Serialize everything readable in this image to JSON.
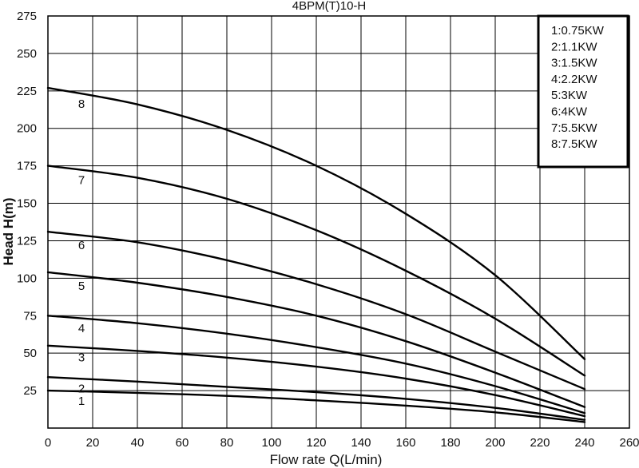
{
  "chart_data": {
    "type": "line",
    "title": "4BPM(T)10-H",
    "xlabel": "Flow rate Q(L/min)",
    "ylabel": "Head H(m)",
    "xlim": [
      0,
      260
    ],
    "ylim": [
      0,
      275
    ],
    "x_ticks": [
      "0",
      "20",
      "40",
      "60",
      "80",
      "100",
      "120",
      "140",
      "160",
      "180",
      "200",
      "220",
      "240",
      "260"
    ],
    "y_ticks": [
      "25",
      "50",
      "75",
      "100",
      "125",
      "150",
      "175",
      "200",
      "225",
      "250",
      "275"
    ],
    "grid": true,
    "legend_position": "top-right",
    "legend": [
      "1:0.75KW",
      "2:1.1KW",
      "3:1.5KW",
      "4:2.2KW",
      "5:3KW",
      "6:4KW",
      "7:5.5KW",
      "8:7.5KW"
    ],
    "x": [
      0,
      40,
      80,
      120,
      160,
      200,
      240
    ],
    "series": [
      {
        "name": "1",
        "values": [
          25,
          23.5,
          21.5,
          18.5,
          15,
          10.5,
          4
        ]
      },
      {
        "name": "2",
        "values": [
          34,
          31,
          27.5,
          24,
          19.5,
          13.5,
          5.5
        ]
      },
      {
        "name": "3",
        "values": [
          55,
          51.5,
          47,
          41,
          33,
          22,
          8
        ]
      },
      {
        "name": "4",
        "values": [
          75,
          70,
          63,
          54,
          43,
          28,
          10
        ]
      },
      {
        "name": "5",
        "values": [
          104,
          97,
          87.5,
          75,
          58,
          37,
          14
        ]
      },
      {
        "name": "6",
        "values": [
          131,
          124,
          112,
          96,
          76,
          51,
          26
        ]
      },
      {
        "name": "7",
        "values": [
          175,
          167,
          153,
          132,
          105,
          73,
          35
        ]
      },
      {
        "name": "8",
        "values": [
          227,
          216,
          199,
          175,
          143,
          102,
          46
        ]
      }
    ]
  }
}
